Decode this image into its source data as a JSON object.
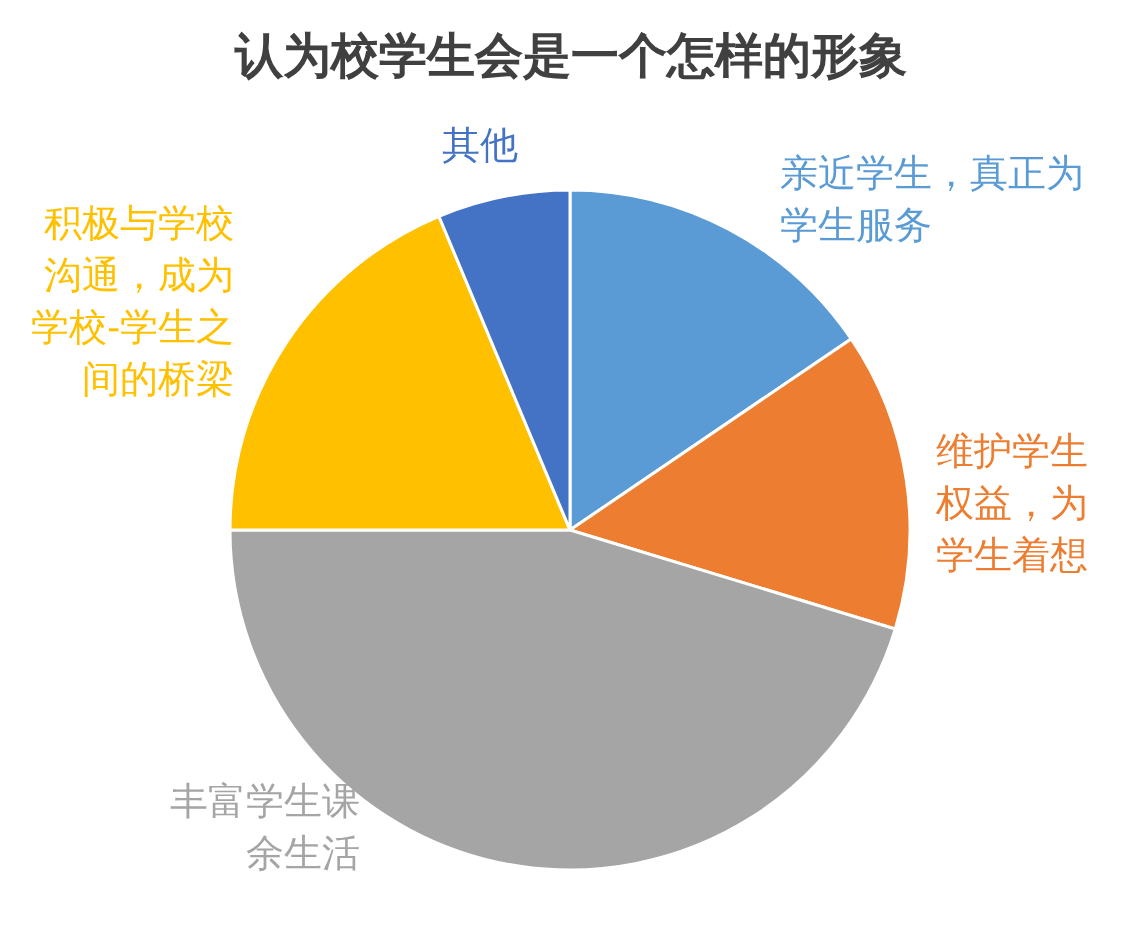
{
  "chart_data": {
    "type": "pie",
    "title": "认为校学生会是一个怎样的形象",
    "categories": [
      "亲近学生，真正为学生服务",
      "维护学生权益，为学生着想",
      "丰富学生课余生活",
      "积极与学校沟通，成为学校-学生之间的桥梁",
      "其他"
    ],
    "values": [
      15.5,
      14.2,
      45.3,
      18.7,
      6.3
    ],
    "colors": [
      "#5b9bd5",
      "#ed7d31",
      "#a5a5a5",
      "#ffc000",
      "#4472c4"
    ]
  }
}
